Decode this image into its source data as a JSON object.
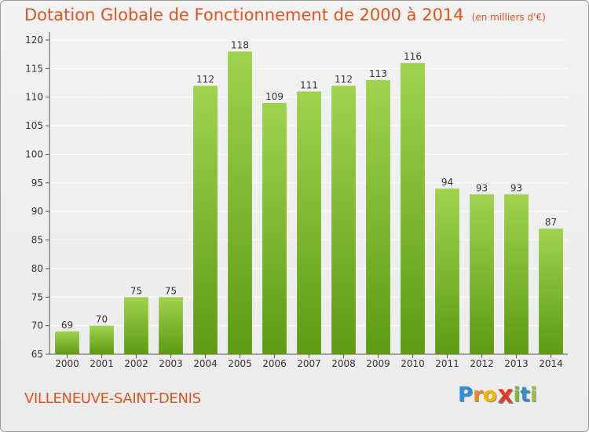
{
  "title": "Dotation Globale de Fonctionnement de 2000 à 2014",
  "subtitle": "(en milliers d'€)",
  "commune": "VILLENEUVE-SAINT-DENIS",
  "logo": {
    "letters": [
      "P",
      "r",
      "o",
      "x",
      "i",
      "t",
      "i"
    ],
    "colors": [
      "#2f8fd6",
      "#f08a1c",
      "#f5b400",
      "#e03a2a",
      "#7bbf2a",
      "#2f8fd6",
      "#9ac23c"
    ]
  },
  "colors": {
    "bar_top": "#9fd34e",
    "bar_bottom": "#5e9a12",
    "accent": "#e0531f",
    "grid": "#ffffff",
    "text": "#333333"
  },
  "chart_data": {
    "type": "bar",
    "title": "Dotation Globale de Fonctionnement de 2000 à 2014",
    "subtitle": "(en milliers d'€)",
    "categories": [
      "2000",
      "2001",
      "2002",
      "2003",
      "2004",
      "2005",
      "2006",
      "2007",
      "2008",
      "2009",
      "2010",
      "2011",
      "2012",
      "2013",
      "2014"
    ],
    "values": [
      69,
      70,
      75,
      75,
      112,
      118,
      109,
      111,
      112,
      113,
      116,
      94,
      93,
      93,
      87
    ],
    "ylim": [
      65,
      120
    ],
    "yticks": [
      65,
      70,
      75,
      80,
      85,
      90,
      95,
      100,
      105,
      110,
      115,
      120
    ],
    "grid": true,
    "data_labels": true
  }
}
